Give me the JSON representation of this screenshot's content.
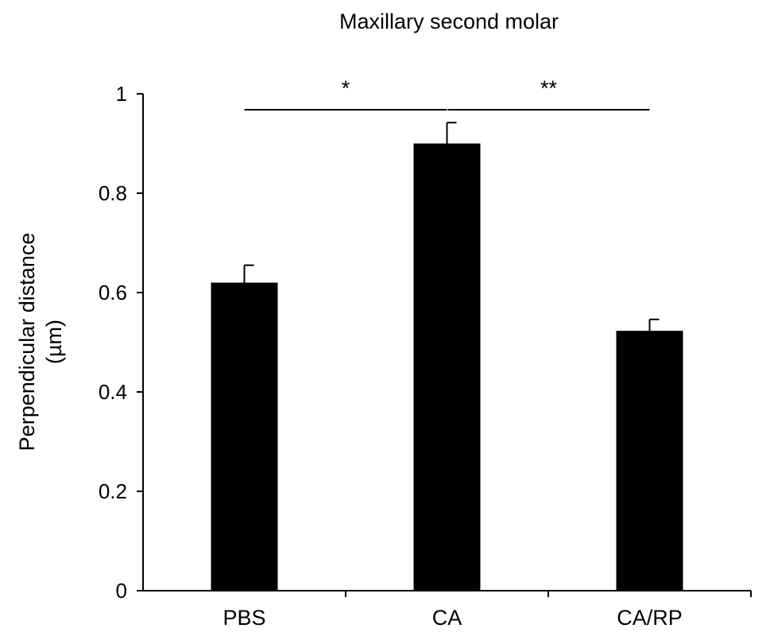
{
  "chart_data": {
    "type": "bar",
    "title": "Maxillary second molar",
    "xlabel": "",
    "ylabel_lines": [
      "Perpendicular distance",
      "(µm)"
    ],
    "categories": [
      "PBS",
      "CA",
      "CA/RP"
    ],
    "values": [
      0.62,
      0.9,
      0.523
    ],
    "errors": [
      0.035,
      0.042,
      0.023
    ],
    "ylim": [
      0,
      1
    ],
    "yticks": [
      0,
      0.2,
      0.4,
      0.6,
      0.8,
      1
    ],
    "ytick_labels": [
      "0",
      "0.2",
      "0.4",
      "0.6",
      "0.8",
      "1"
    ],
    "significance": [
      {
        "from": 0,
        "to": 1,
        "label": "*",
        "y": 0.968
      },
      {
        "from": 1,
        "to": 2,
        "label": "**",
        "y": 0.968
      }
    ],
    "bar_color": "#000000",
    "grid": false,
    "legend": "none"
  }
}
